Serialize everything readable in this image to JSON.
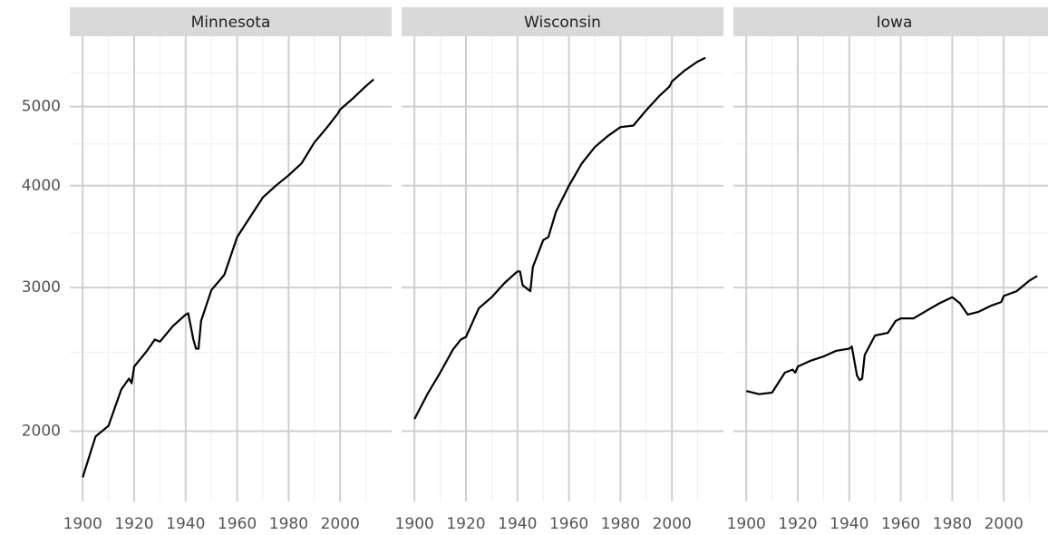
{
  "chart_data": [
    {
      "type": "line",
      "title": "Minnesota",
      "log_y": true,
      "grid": true,
      "show_ytick_labels": true,
      "color": "#000000",
      "xlim": [
        1895,
        2020
      ],
      "ylim": [
        1640,
        6100
      ],
      "xticks": [
        1900,
        1920,
        1940,
        1960,
        1980,
        2000
      ],
      "x_minor_ticks": [
        1910,
        1930,
        1950,
        1970,
        1990,
        2010
      ],
      "yticks": [
        2000,
        3000,
        4000,
        5000
      ],
      "y_minor_ticks": [
        2500,
        3500,
        4500,
        5500
      ],
      "x": [
        1900,
        1905,
        1910,
        1915,
        1918,
        1919,
        1920,
        1925,
        1928,
        1930,
        1935,
        1940,
        1941,
        1943,
        1944,
        1945,
        1946,
        1950,
        1955,
        1960,
        1965,
        1970,
        1975,
        1980,
        1985,
        1990,
        1995,
        1999,
        2000,
        2005,
        2010,
        2013
      ],
      "values": [
        1755,
        1970,
        2030,
        2250,
        2320,
        2290,
        2400,
        2510,
        2590,
        2575,
        2690,
        2780,
        2790,
        2590,
        2525,
        2525,
        2730,
        2980,
        3110,
        3460,
        3660,
        3870,
        4000,
        4120,
        4260,
        4520,
        4720,
        4900,
        4960,
        5120,
        5300,
        5400
      ]
    },
    {
      "type": "line",
      "title": "Wisconsin",
      "log_y": true,
      "grid": true,
      "show_ytick_labels": false,
      "color": "#000000",
      "xlim": [
        1895,
        2020
      ],
      "ylim": [
        1640,
        6100
      ],
      "xticks": [
        1900,
        1920,
        1940,
        1960,
        1980,
        2000
      ],
      "x_minor_ticks": [
        1910,
        1930,
        1950,
        1970,
        1990,
        2010
      ],
      "yticks": [
        2000,
        3000,
        4000,
        5000
      ],
      "y_minor_ticks": [
        2500,
        3500,
        4500,
        5500
      ],
      "x": [
        1900,
        1905,
        1910,
        1915,
        1918,
        1920,
        1925,
        1930,
        1935,
        1940,
        1941,
        1942,
        1945,
        1946,
        1950,
        1952,
        1955,
        1960,
        1965,
        1970,
        1975,
        1980,
        1985,
        1990,
        1995,
        1999,
        2000,
        2005,
        2010,
        2013
      ],
      "values": [
        2070,
        2220,
        2360,
        2520,
        2590,
        2610,
        2830,
        2920,
        3040,
        3140,
        3140,
        3020,
        2970,
        3180,
        3430,
        3460,
        3720,
        4000,
        4260,
        4460,
        4600,
        4720,
        4740,
        4950,
        5150,
        5290,
        5370,
        5540,
        5680,
        5740
      ]
    },
    {
      "type": "line",
      "title": "Iowa",
      "log_y": true,
      "grid": true,
      "show_ytick_labels": false,
      "color": "#000000",
      "xlim": [
        1895,
        2020
      ],
      "ylim": [
        1640,
        6100
      ],
      "xticks": [
        1900,
        1920,
        1940,
        1960,
        1980,
        2000
      ],
      "x_minor_ticks": [
        1910,
        1930,
        1950,
        1970,
        1990,
        2010
      ],
      "yticks": [
        2000,
        3000,
        4000,
        5000
      ],
      "y_minor_ticks": [
        2500,
        3500,
        4500,
        5500
      ],
      "x": [
        1900,
        1905,
        1910,
        1915,
        1918,
        1919,
        1920,
        1925,
        1930,
        1935,
        1940,
        1941,
        1943,
        1944,
        1945,
        1946,
        1950,
        1955,
        1958,
        1960,
        1965,
        1970,
        1975,
        1980,
        1983,
        1986,
        1990,
        1995,
        1999,
        2000,
        2005,
        2010,
        2013
      ],
      "values": [
        2240,
        2220,
        2230,
        2360,
        2380,
        2360,
        2400,
        2440,
        2470,
        2510,
        2525,
        2540,
        2340,
        2310,
        2320,
        2480,
        2620,
        2640,
        2730,
        2750,
        2750,
        2810,
        2870,
        2920,
        2870,
        2780,
        2800,
        2850,
        2880,
        2930,
        2970,
        3060,
        3100
      ]
    }
  ]
}
